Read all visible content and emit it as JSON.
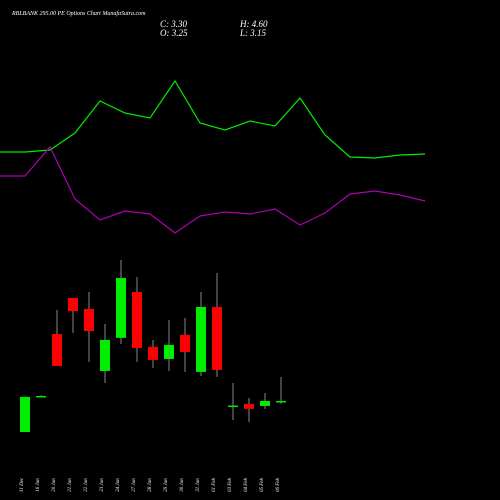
{
  "header": {
    "title": "RBLBANK 295.00 PE Options Chart MunafaSutra.com",
    "close_label": "C: 3.30",
    "open_label": "O: 3.25",
    "high_label": "H: 4.60",
    "low_label": "L: 3.15"
  },
  "chart_data": [
    {
      "type": "line",
      "ylim": [
        0,
        20
      ],
      "series": [
        {
          "color": "#00ee00",
          "values": [
            10.8,
            10.8,
            11.0,
            12.7,
            15.9,
            14.7,
            14.2,
            17.9,
            13.7,
            13.0,
            13.9,
            13.4,
            16.2,
            12.5,
            10.3,
            10.2,
            10.5,
            10.6
          ]
        },
        {
          "color": "#b000b0",
          "values": [
            8.4,
            8.4,
            11.3,
            6.1,
            4.0,
            4.9,
            4.6,
            2.7,
            4.4,
            4.8,
            4.6,
            5.1,
            3.5,
            4.7,
            6.6,
            6.9,
            6.5,
            5.9
          ]
        }
      ]
    },
    {
      "type": "candlestick",
      "ylim": [
        0,
        14
      ],
      "up_color": "#00ee00",
      "down_color": "#ff0000",
      "categories": [
        "31 Dec",
        "16 Jan",
        "20 Jan",
        "21 Jan",
        "22 Jan",
        "23 Jan",
        "24 Jan",
        "27 Jan",
        "28 Jan",
        "29 Jan",
        "30 Jan",
        "31 Jan",
        "01 Feb",
        "03 Feb",
        "04 Feb",
        "05 Feb",
        "06 Feb"
      ],
      "open": [
        1.62,
        3.57,
        6.92,
        8.87,
        8.27,
        4.92,
        6.71,
        9.19,
        6.22,
        5.57,
        6.87,
        4.87,
        8.38,
        2.98,
        3.14,
        3.03,
        3.25
      ],
      "close": [
        3.52,
        3.57,
        5.19,
        8.16,
        7.08,
        6.6,
        9.95,
        6.16,
        5.52,
        6.33,
        5.95,
        8.38,
        4.98,
        3.05,
        2.87,
        3.3,
        3.3
      ],
      "high": [
        3.52,
        3.6,
        8.22,
        8.87,
        9.19,
        7.46,
        10.92,
        10.0,
        6.6,
        7.68,
        7.79,
        9.19,
        10.22,
        4.27,
        3.46,
        3.73,
        4.6
      ],
      "low": [
        1.62,
        3.55,
        5.19,
        6.98,
        5.41,
        4.27,
        6.38,
        5.41,
        5.08,
        4.92,
        4.87,
        4.65,
        4.6,
        2.27,
        2.16,
        2.87,
        3.15
      ]
    }
  ]
}
